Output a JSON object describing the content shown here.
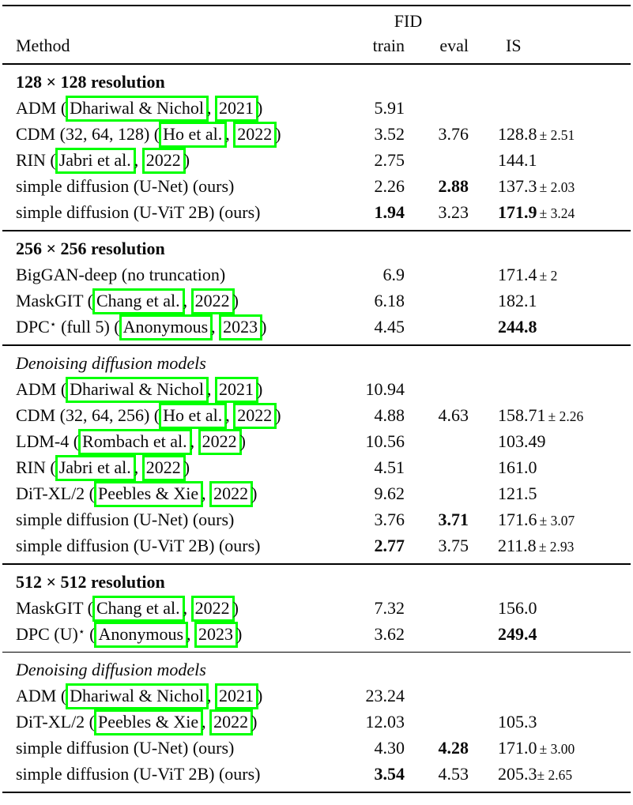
{
  "colors": {
    "link_box": "#00ff00",
    "text": "#0a0a0a",
    "background": "#ffffff",
    "rule": "#000000"
  },
  "table": {
    "header": {
      "fid_group_label": "FID",
      "method_label": "Method",
      "train_label": "train",
      "eval_label": "eval",
      "is_label": "IS"
    },
    "sections": [
      {
        "heading": "128 × 128 resolution",
        "heading_style": "bold",
        "rule_before": "header",
        "rows": [
          {
            "method": [
              {
                "t": "ADM ("
              },
              {
                "t": "Dhariwal & Nichol",
                "box": true
              },
              {
                "t": ", "
              },
              {
                "t": "2021",
                "box": true
              },
              {
                "t": ")"
              }
            ],
            "train": "5.91",
            "train_bold": false,
            "eval": "",
            "eval_bold": false,
            "is_main": "",
            "is_bold": false,
            "is_pm": ""
          },
          {
            "method": [
              {
                "t": "CDM (32, 64, 128) ("
              },
              {
                "t": "Ho et al.",
                "box": true
              },
              {
                "t": ", "
              },
              {
                "t": "2022",
                "box": true
              },
              {
                "t": ")"
              }
            ],
            "train": "3.52",
            "train_bold": false,
            "eval": "3.76",
            "eval_bold": false,
            "is_main": "128.8",
            "is_bold": false,
            "is_pm": "± 2.51"
          },
          {
            "method": [
              {
                "t": "RIN ("
              },
              {
                "t": "Jabri et al.",
                "box": true
              },
              {
                "t": ", "
              },
              {
                "t": "2022",
                "box": true
              },
              {
                "t": ")"
              }
            ],
            "train": "2.75",
            "train_bold": false,
            "eval": "",
            "eval_bold": false,
            "is_main": "144.1",
            "is_bold": false,
            "is_pm": ""
          },
          {
            "method": [
              {
                "t": "simple diffusion (U-Net) (ours)"
              }
            ],
            "train": "2.26",
            "train_bold": false,
            "eval": "2.88",
            "eval_bold": true,
            "is_main": "137.3",
            "is_bold": false,
            "is_pm": "± 2.03"
          },
          {
            "method": [
              {
                "t": "simple diffusion (U-ViT 2B) (ours)"
              }
            ],
            "train": "1.94",
            "train_bold": true,
            "eval": "3.23",
            "eval_bold": false,
            "is_main": "171.9",
            "is_bold": true,
            "is_pm": "± 3.24"
          }
        ]
      },
      {
        "heading": "256 × 256 resolution",
        "heading_style": "bold",
        "rule_before": "thick",
        "rows": [
          {
            "method": [
              {
                "t": "BigGAN-deep (no truncation)"
              }
            ],
            "train": "6.9",
            "train_bold": false,
            "eval": "",
            "eval_bold": false,
            "is_main": "171.4",
            "is_bold": false,
            "is_pm": "± 2"
          },
          {
            "method": [
              {
                "t": "MaskGIT ("
              },
              {
                "t": "Chang et al.",
                "box": true
              },
              {
                "t": ", "
              },
              {
                "t": "2022",
                "box": true
              },
              {
                "t": ")"
              }
            ],
            "train": "6.18",
            "train_bold": false,
            "eval": "",
            "eval_bold": false,
            "is_main": "182.1",
            "is_bold": false,
            "is_pm": ""
          },
          {
            "method": [
              {
                "t": "DPC"
              },
              {
                "t": "⋆",
                "sup": true
              },
              {
                "t": " (full 5) ("
              },
              {
                "t": "Anonymous",
                "box": true
              },
              {
                "t": ", "
              },
              {
                "t": "2023",
                "box": true
              },
              {
                "t": ")"
              }
            ],
            "train": "4.45",
            "train_bold": false,
            "eval": "",
            "eval_bold": false,
            "is_main": "244.8",
            "is_bold": true,
            "is_pm": ""
          }
        ]
      },
      {
        "heading": "Denoising diffusion models",
        "heading_style": "italic",
        "rule_before": "thin",
        "rows": [
          {
            "method": [
              {
                "t": "ADM ("
              },
              {
                "t": "Dhariwal & Nichol",
                "box": true
              },
              {
                "t": ", "
              },
              {
                "t": "2021",
                "box": true
              },
              {
                "t": ")"
              }
            ],
            "train": "10.94",
            "train_bold": false,
            "eval": "",
            "eval_bold": false,
            "is_main": "",
            "is_bold": false,
            "is_pm": ""
          },
          {
            "method": [
              {
                "t": "CDM (32, 64, 256) ("
              },
              {
                "t": "Ho et al.",
                "box": true
              },
              {
                "t": ", "
              },
              {
                "t": "2022",
                "box": true
              },
              {
                "t": ")"
              }
            ],
            "train": "4.88",
            "train_bold": false,
            "eval": "4.63",
            "eval_bold": false,
            "is_main": "158.71",
            "is_bold": false,
            "is_pm": "± 2.26"
          },
          {
            "method": [
              {
                "t": "LDM-4 ("
              },
              {
                "t": "Rombach et al.",
                "box": true
              },
              {
                "t": ", "
              },
              {
                "t": "2022",
                "box": true
              },
              {
                "t": ")"
              }
            ],
            "train": "10.56",
            "train_bold": false,
            "eval": "",
            "eval_bold": false,
            "is_main": "103.49",
            "is_bold": false,
            "is_pm": ""
          },
          {
            "method": [
              {
                "t": "RIN ("
              },
              {
                "t": "Jabri et al.",
                "box": true
              },
              {
                "t": ", "
              },
              {
                "t": "2022",
                "box": true
              },
              {
                "t": ")"
              }
            ],
            "train": "4.51",
            "train_bold": false,
            "eval": "",
            "eval_bold": false,
            "is_main": "161.0",
            "is_bold": false,
            "is_pm": ""
          },
          {
            "method": [
              {
                "t": "DiT-XL/2 ("
              },
              {
                "t": "Peebles & Xie",
                "box": true
              },
              {
                "t": ", "
              },
              {
                "t": "2022",
                "box": true
              },
              {
                "t": ")"
              }
            ],
            "train": "9.62",
            "train_bold": false,
            "eval": "",
            "eval_bold": false,
            "is_main": "121.5",
            "is_bold": false,
            "is_pm": ""
          },
          {
            "method": [
              {
                "t": "simple diffusion (U-Net) (ours)"
              }
            ],
            "train": "3.76",
            "train_bold": false,
            "eval": "3.71",
            "eval_bold": true,
            "is_main": "171.6",
            "is_bold": false,
            "is_pm": "± 3.07"
          },
          {
            "method": [
              {
                "t": "simple diffusion (U-ViT 2B) (ours)"
              }
            ],
            "train": "2.77",
            "train_bold": true,
            "eval": "3.75",
            "eval_bold": false,
            "is_main": "211.8",
            "is_bold": false,
            "is_pm": "± 2.93"
          }
        ]
      },
      {
        "heading": "512 × 512 resolution",
        "heading_style": "bold",
        "rule_before": "thick",
        "rows": [
          {
            "method": [
              {
                "t": "MaskGIT ("
              },
              {
                "t": "Chang et al.",
                "box": true
              },
              {
                "t": ", "
              },
              {
                "t": "2022",
                "box": true
              },
              {
                "t": ")"
              }
            ],
            "train": "7.32",
            "train_bold": false,
            "eval": "",
            "eval_bold": false,
            "is_main": "156.0",
            "is_bold": false,
            "is_pm": ""
          },
          {
            "method": [
              {
                "t": "DPC (U)"
              },
              {
                "t": "⋆",
                "sup": true
              },
              {
                "t": " ("
              },
              {
                "t": "Anonymous",
                "box": true
              },
              {
                "t": ", "
              },
              {
                "t": "2023",
                "box": true
              },
              {
                "t": ")"
              }
            ],
            "train": "3.62",
            "train_bold": false,
            "eval": "",
            "eval_bold": false,
            "is_main": "249.4",
            "is_bold": true,
            "is_pm": ""
          }
        ]
      },
      {
        "heading": "Denoising diffusion models",
        "heading_style": "italic",
        "rule_before": "thin",
        "rows": [
          {
            "method": [
              {
                "t": "ADM ("
              },
              {
                "t": "Dhariwal & Nichol",
                "box": true
              },
              {
                "t": ", "
              },
              {
                "t": "2021",
                "box": true
              },
              {
                "t": ")"
              }
            ],
            "train": "23.24",
            "train_bold": false,
            "eval": "",
            "eval_bold": false,
            "is_main": "",
            "is_bold": false,
            "is_pm": ""
          },
          {
            "method": [
              {
                "t": "DiT-XL/2 ("
              },
              {
                "t": "Peebles & Xie",
                "box": true
              },
              {
                "t": ", "
              },
              {
                "t": "2022",
                "box": true
              },
              {
                "t": ")"
              }
            ],
            "train": "12.03",
            "train_bold": false,
            "eval": "",
            "eval_bold": false,
            "is_main": "105.3",
            "is_bold": false,
            "is_pm": ""
          },
          {
            "method": [
              {
                "t": "simple diffusion (U-Net) (ours)"
              }
            ],
            "train": "4.30",
            "train_bold": false,
            "eval": "4.28",
            "eval_bold": true,
            "is_main": "171.0",
            "is_bold": false,
            "is_pm": "± 3.00"
          },
          {
            "method": [
              {
                "t": "simple diffusion (U-ViT 2B) (ours)"
              }
            ],
            "train": "3.54",
            "train_bold": true,
            "eval": "4.53",
            "eval_bold": false,
            "is_main": "205.3",
            "is_bold": false,
            "is_pm": "± 2.65",
            "is_tight": true
          }
        ]
      }
    ],
    "rule_after_sections": "bottom"
  }
}
